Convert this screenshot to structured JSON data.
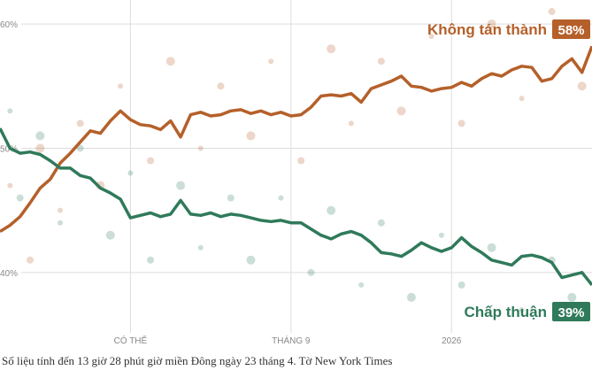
{
  "chart_data": {
    "type": "line",
    "source": "Số liệu tính đến 13 giờ 28 phút giờ miền Đông ngày 23 tháng 4.  Tờ New York Times",
    "xlim": [
      0,
      59
    ],
    "ylim": [
      36,
      62
    ],
    "xticks": [
      {
        "value": 13,
        "label": "CÓ THỂ"
      },
      {
        "value": 29,
        "label": "THÁNG 9"
      },
      {
        "value": 45,
        "label": "2026"
      }
    ],
    "yticks": [
      {
        "value": 60,
        "label": "60%"
      },
      {
        "value": 50,
        "label": "50%"
      },
      {
        "value": 40,
        "label": "40%"
      }
    ],
    "grid": true,
    "series": [
      {
        "name": "Không tán thành",
        "color": "#b5602a",
        "values": [
          43.3,
          43.8,
          44.5,
          45.6,
          46.8,
          47.5,
          48.8,
          49.6,
          50.5,
          51.4,
          51.2,
          52.2,
          53.0,
          52.3,
          51.9,
          51.8,
          51.5,
          52.2,
          50.9,
          52.7,
          52.9,
          52.6,
          52.7,
          53.0,
          53.1,
          52.8,
          53.0,
          52.7,
          52.9,
          52.6,
          52.7,
          53.3,
          54.2,
          54.3,
          54.2,
          54.4,
          53.7,
          54.8,
          55.1,
          55.4,
          55.8,
          55.0,
          54.9,
          54.6,
          54.8,
          54.9,
          55.3,
          55.0,
          55.6,
          56.0,
          55.8,
          56.3,
          56.6,
          56.5,
          55.4,
          55.6,
          56.6,
          57.2,
          56.1,
          58.2
        ],
        "value_labels": [
          null,
          null,
          null,
          null,
          null,
          null,
          null,
          null,
          null,
          null,
          null,
          null,
          null,
          null,
          null,
          null,
          null,
          null,
          null,
          null,
          null,
          null,
          null,
          null,
          null,
          null,
          null,
          null,
          null,
          null,
          null,
          null,
          null,
          null,
          null,
          null,
          null,
          null,
          null,
          null,
          null,
          null,
          null,
          null,
          null,
          null,
          null,
          null,
          null,
          null,
          null,
          null,
          null,
          null,
          null,
          null,
          null,
          null,
          null,
          "58%"
        ],
        "poll_x": [
          1,
          3,
          4,
          6,
          8,
          10,
          12,
          15,
          17,
          20,
          22,
          25,
          27,
          30,
          33,
          35,
          38,
          40,
          43,
          46,
          49,
          52,
          55,
          58
        ],
        "poll_y": [
          47,
          41,
          50,
          45,
          52,
          47,
          55,
          49,
          57,
          50,
          55,
          51,
          57,
          49,
          58,
          52,
          57,
          53,
          59,
          52,
          60,
          54,
          61,
          55
        ]
      },
      {
        "name": "Chấp thuận",
        "color": "#2f7a5a",
        "values": [
          51.6,
          50.0,
          49.6,
          49.7,
          49.5,
          49.0,
          48.4,
          48.4,
          47.8,
          47.6,
          46.8,
          46.4,
          45.9,
          44.4,
          44.6,
          44.8,
          44.5,
          44.7,
          45.8,
          44.7,
          44.6,
          44.8,
          44.5,
          44.7,
          44.6,
          44.4,
          44.2,
          44.1,
          44.2,
          44.0,
          44.0,
          43.5,
          43.0,
          42.7,
          43.1,
          43.3,
          43.0,
          42.4,
          41.6,
          41.5,
          41.3,
          41.8,
          42.4,
          42.0,
          41.7,
          42.0,
          42.8,
          42.1,
          41.6,
          41.0,
          40.8,
          40.6,
          41.3,
          41.4,
          41.2,
          40.8,
          39.6,
          39.8,
          40.0,
          39.0
        ],
        "value_labels": [
          null,
          null,
          null,
          null,
          null,
          null,
          null,
          null,
          null,
          null,
          null,
          null,
          null,
          null,
          null,
          null,
          null,
          null,
          null,
          null,
          null,
          null,
          null,
          null,
          null,
          null,
          null,
          null,
          null,
          null,
          null,
          null,
          null,
          null,
          null,
          null,
          null,
          null,
          null,
          null,
          null,
          null,
          null,
          null,
          null,
          null,
          null,
          null,
          null,
          null,
          null,
          null,
          null,
          null,
          null,
          null,
          null,
          null,
          null,
          "39%"
        ],
        "poll_x": [
          1,
          2,
          4,
          6,
          8,
          11,
          13,
          15,
          18,
          20,
          23,
          25,
          28,
          31,
          33,
          36,
          38,
          41,
          44,
          46,
          49,
          52,
          55,
          57
        ],
        "poll_y": [
          53,
          46,
          51,
          44,
          50,
          43,
          48,
          41,
          47,
          42,
          46,
          41,
          46,
          40,
          45,
          39,
          44,
          38,
          43,
          39,
          42,
          37,
          41,
          38
        ]
      }
    ]
  }
}
